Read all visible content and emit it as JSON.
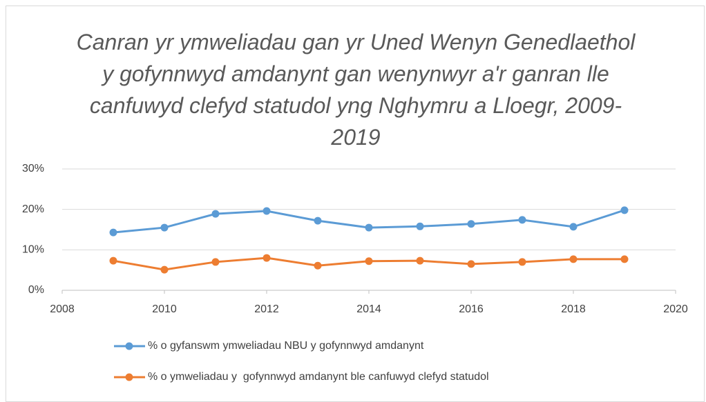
{
  "chart_data": {
    "type": "line",
    "title": "Canran yr ymweliadau gan yr Uned Wenyn Genedlaethol y gofynnwyd amdanynt gan wenynwyr a'r ganran lle canfuwyd clefyd statudol yng Nghymru a Lloegr, 2009-2019",
    "x": [
      2009,
      2010,
      2011,
      2012,
      2013,
      2014,
      2015,
      2016,
      2017,
      2018,
      2019
    ],
    "series": [
      {
        "name": "% o gyfanswm ymweliadau NBU y gofynnwyd amdanynt",
        "color": "#5b9bd5",
        "values": [
          14.3,
          15.5,
          18.9,
          19.6,
          17.2,
          15.5,
          15.8,
          16.4,
          17.4,
          15.7,
          19.8
        ]
      },
      {
        "name": "% o ymweliadau y  gofynnwyd amdanynt ble canfuwyd clefyd statudol",
        "color": "#ed7d31",
        "values": [
          7.3,
          5.1,
          7.0,
          8.0,
          6.1,
          7.2,
          7.3,
          6.5,
          7.0,
          7.7,
          7.7
        ]
      }
    ],
    "xlim": [
      2008,
      2020
    ],
    "xticks": [
      2008,
      2010,
      2012,
      2014,
      2016,
      2018,
      2020
    ],
    "ylim": [
      0,
      30
    ],
    "yticks": [
      {
        "value": 0,
        "label": "0%"
      },
      {
        "value": 10,
        "label": "10%"
      },
      {
        "value": 20,
        "label": "20%"
      },
      {
        "value": 30,
        "label": "30%"
      }
    ],
    "grid": true,
    "legend": "bottom"
  }
}
